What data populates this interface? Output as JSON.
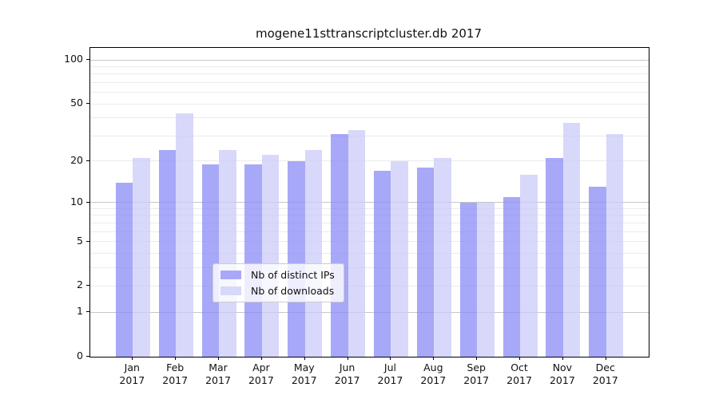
{
  "chart_data": {
    "type": "bar",
    "title": "mogene11sttranscriptcluster.db 2017",
    "categories": [
      "Jan 2017",
      "Feb 2017",
      "Mar 2017",
      "Apr 2017",
      "May 2017",
      "Jun 2017",
      "Jul 2017",
      "Aug 2017",
      "Sep 2017",
      "Oct 2017",
      "Nov 2017",
      "Dec 2017"
    ],
    "series": [
      {
        "name": "Nb of distinct IPs",
        "values": [
          14,
          24,
          19,
          19,
          20,
          31,
          17,
          18,
          10,
          11,
          21,
          13
        ],
        "color": "#a8a8f8",
        "fill": "rgba(139,139,246,0.75)"
      },
      {
        "name": "Nb of downloads",
        "values": [
          21,
          43,
          24,
          22,
          24,
          33,
          20,
          21,
          10,
          16,
          37,
          31
        ],
        "color": "#d8d8fa",
        "fill": "rgba(203,203,248,0.75)"
      }
    ],
    "xlabel": "",
    "ylabel": "",
    "yscale": "log1p",
    "ylim": [
      0,
      120
    ],
    "yticks": [
      0,
      1,
      2,
      5,
      10,
      20,
      50,
      100
    ],
    "grid": {
      "major": [
        1,
        10,
        100
      ],
      "minor": [
        2,
        3,
        4,
        5,
        6,
        7,
        8,
        9,
        20,
        30,
        40,
        50,
        60,
        70,
        80,
        90
      ]
    },
    "legend": {
      "position": "lower center",
      "framealpha": 0.8
    }
  }
}
